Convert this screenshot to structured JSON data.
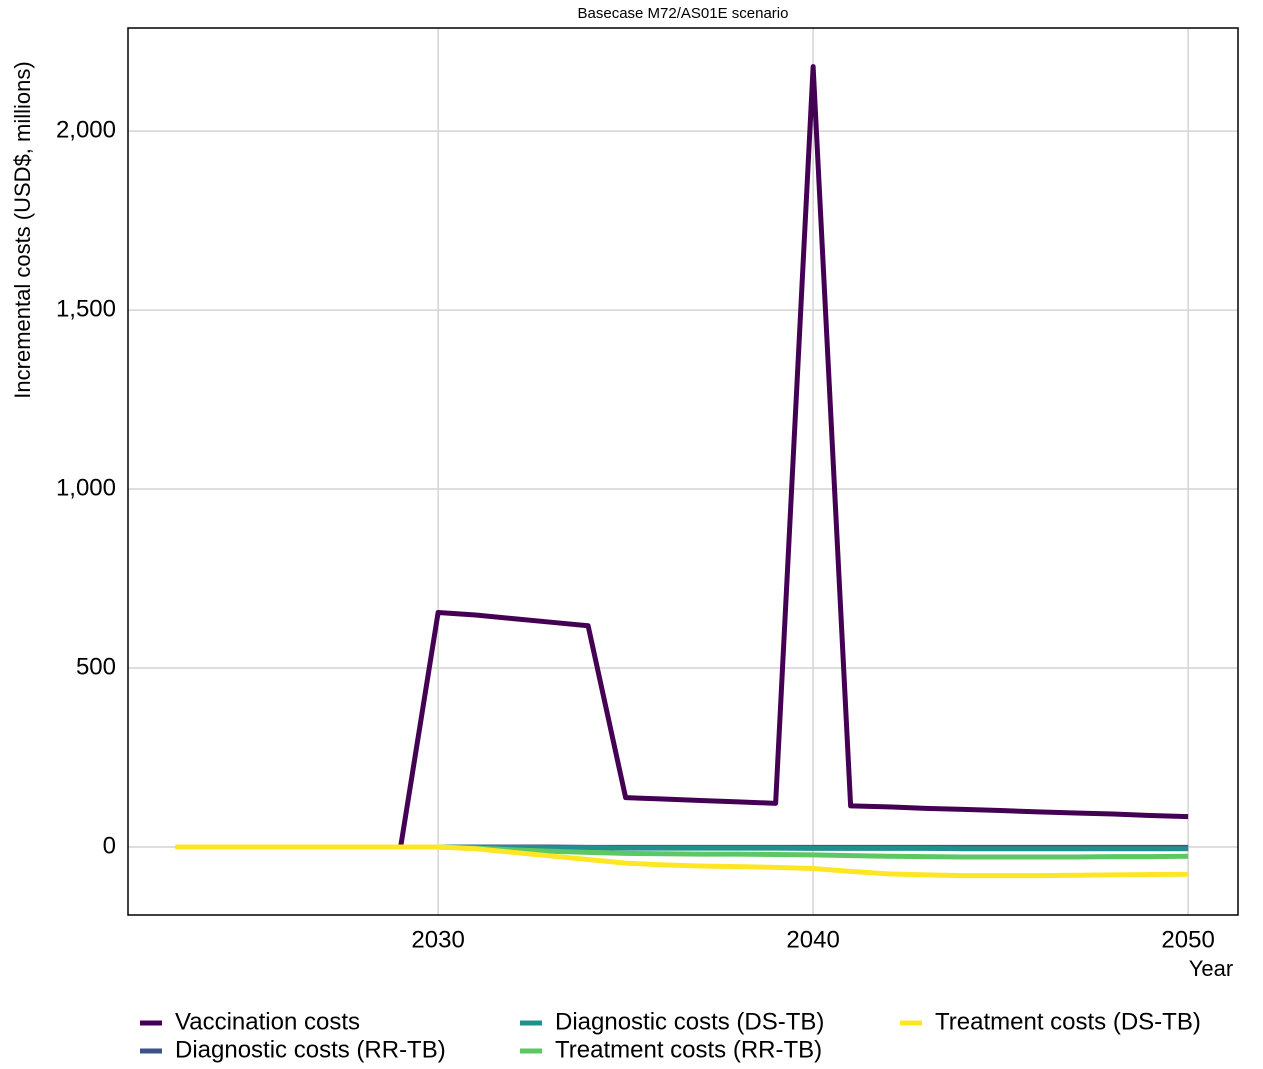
{
  "chart_data": {
    "type": "line",
    "title": "Basecase M72/AS01E scenario",
    "xlabel": "Year",
    "ylabel": "Incremental costs (USD$, millions)",
    "x": [
      2023,
      2024,
      2025,
      2026,
      2027,
      2028,
      2029,
      2030,
      2031,
      2032,
      2033,
      2034,
      2035,
      2036,
      2037,
      2038,
      2039,
      2040,
      2041,
      2042,
      2043,
      2044,
      2045,
      2046,
      2047,
      2048,
      2049,
      2050
    ],
    "series": [
      {
        "name": "Vaccination costs",
        "color": "#440154",
        "values": [
          0,
          0,
          0,
          0,
          0,
          0,
          0,
          655,
          648,
          638,
          628,
          618,
          138,
          134,
          130,
          126,
          122,
          2180,
          115,
          112,
          108,
          105,
          102,
          98,
          95,
          92,
          88,
          85
        ]
      },
      {
        "name": "Diagnostic costs (RR-TB)",
        "color": "#3b528b",
        "values": [
          0,
          0,
          0,
          0,
          0,
          0,
          0,
          0,
          0,
          0,
          0,
          -1,
          -1,
          -1,
          -1,
          -1,
          -1,
          -1,
          -1,
          -1,
          -1,
          -1,
          -1,
          -1,
          -1,
          -1,
          -1,
          -1
        ]
      },
      {
        "name": "Diagnostic costs (DS-TB)",
        "color": "#21908c",
        "values": [
          0,
          0,
          0,
          0,
          0,
          0,
          0,
          0,
          -1,
          -1,
          -2,
          -2,
          -3,
          -3,
          -3,
          -3,
          -3,
          -4,
          -4,
          -4,
          -4,
          -5,
          -5,
          -5,
          -5,
          -5,
          -5,
          -5
        ]
      },
      {
        "name": "Treatment costs (RR-TB)",
        "color": "#5dc863",
        "values": [
          0,
          0,
          0,
          0,
          0,
          0,
          0,
          0,
          -3,
          -8,
          -12,
          -15,
          -18,
          -19,
          -20,
          -20,
          -21,
          -22,
          -24,
          -26,
          -27,
          -28,
          -28,
          -28,
          -28,
          -27,
          -27,
          -26
        ]
      },
      {
        "name": "Treatment costs (DS-TB)",
        "color": "#fde725",
        "values": [
          0,
          0,
          0,
          0,
          0,
          0,
          0,
          0,
          -5,
          -15,
          -25,
          -35,
          -45,
          -50,
          -53,
          -55,
          -57,
          -60,
          -68,
          -75,
          -78,
          -80,
          -80,
          -80,
          -79,
          -78,
          -77,
          -76
        ]
      }
    ],
    "xlim": [
      2021.73,
      2051.33
    ],
    "xticks": [
      2030,
      2040,
      2050
    ],
    "ylim": [
      -190,
      2288
    ],
    "yticks": [
      0,
      500,
      {
        "value": 1000,
        "label": "1,000"
      },
      {
        "value": 1500,
        "label": "1,500"
      },
      {
        "value": 2000,
        "label": "2,000"
      }
    ],
    "grid": true,
    "legend": "bottom"
  }
}
